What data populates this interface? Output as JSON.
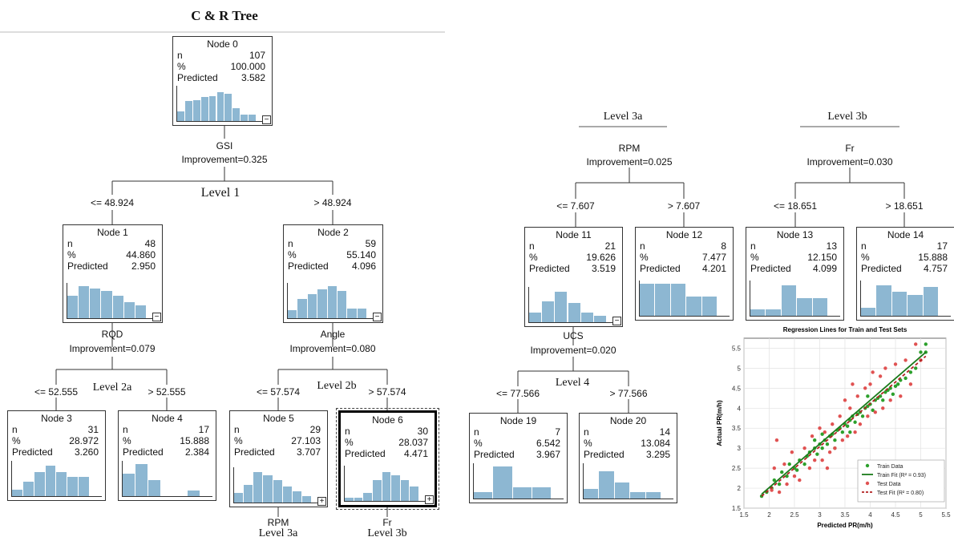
{
  "title": "C & R Tree",
  "nodes": {
    "n0": {
      "name": "Node 0",
      "n": "107",
      "pct": "100.000",
      "pred": "3.582",
      "hist": [
        0.3,
        0.62,
        0.66,
        0.75,
        0.78,
        0.9,
        0.85,
        0.4,
        0.2,
        0.2
      ]
    },
    "n1": {
      "name": "Node 1",
      "n": "48",
      "pct": "44.860",
      "pred": "2.950",
      "hist": [
        0.7,
        1.0,
        0.92,
        0.85,
        0.7,
        0.5,
        0.4
      ]
    },
    "n2": {
      "name": "Node 2",
      "n": "59",
      "pct": "55.140",
      "pred": "4.096",
      "hist": [
        0.25,
        0.6,
        0.75,
        0.9,
        1.0,
        0.85,
        0.3,
        0.3
      ]
    },
    "n3": {
      "name": "Node 3",
      "n": "31",
      "pct": "28.972",
      "pred": "3.260",
      "hist": [
        0.2,
        0.45,
        0.75,
        0.95,
        0.75,
        0.6,
        0.6
      ]
    },
    "n4": {
      "name": "Node 4",
      "n": "17",
      "pct": "15.888",
      "pred": "2.384",
      "hist": [
        0.7,
        1.0,
        0.5,
        0,
        0,
        0.18
      ]
    },
    "n5": {
      "name": "Node 5",
      "n": "29",
      "pct": "27.103",
      "pred": "3.707",
      "hist": [
        0.3,
        0.55,
        0.95,
        0.85,
        0.7,
        0.5,
        0.35,
        0.2
      ]
    },
    "n6": {
      "name": "Node 6",
      "n": "30",
      "pct": "28.037",
      "pred": "4.471",
      "hist": [
        0.1,
        0.1,
        0.25,
        0.65,
        0.9,
        0.8,
        0.65,
        0.45
      ]
    },
    "n11": {
      "name": "Node 11",
      "n": "21",
      "pct": "19.626",
      "pred": "3.519",
      "hist": [
        0.3,
        0.65,
        0.95,
        0.6,
        0.3,
        0.2
      ]
    },
    "n12": {
      "name": "Node 12",
      "n": "8",
      "pct": "7.477",
      "pred": "4.201",
      "hist": [
        1.0,
        1.0,
        1.0,
        0.6,
        0.6
      ]
    },
    "n13": {
      "name": "Node 13",
      "n": "13",
      "pct": "12.150",
      "pred": "4.099",
      "hist": [
        0.2,
        0.2,
        0.95,
        0.55,
        0.55
      ]
    },
    "n14": {
      "name": "Node 14",
      "n": "17",
      "pct": "15.888",
      "pred": "4.757",
      "hist": [
        0.25,
        0.95,
        0.75,
        0.65,
        0.9
      ]
    },
    "n19": {
      "name": "Node 19",
      "n": "7",
      "pct": "6.542",
      "pred": "3.967",
      "hist": [
        0.2,
        1.0,
        0.35,
        0.35
      ]
    },
    "n20": {
      "name": "Node 20",
      "n": "14",
      "pct": "13.084",
      "pred": "3.295",
      "hist": [
        0.3,
        0.85,
        0.5,
        0.2,
        0.2
      ]
    }
  },
  "row_labels": {
    "n": "n",
    "pct": "%",
    "pred": "Predicted"
  },
  "splits": {
    "gsi": {
      "var": "GSI",
      "imp": "Improvement=0.325",
      "left": "<= 48.924",
      "right": "> 48.924"
    },
    "rqd": {
      "var": "RQD",
      "imp": "Improvement=0.079",
      "left": "<= 52.555",
      "right": "> 52.555"
    },
    "angle": {
      "var": "Angle",
      "imp": "Improvement=0.080",
      "left": "<= 57.574",
      "right": "> 57.574"
    },
    "rpm": {
      "var": "RPM",
      "imp": "Improvement=0.025",
      "left": "<= 7.607",
      "right": "> 7.607"
    },
    "fr": {
      "var": "Fr",
      "imp": "Improvement=0.030",
      "left": "<= 18.651",
      "right": "> 18.651"
    },
    "ucs": {
      "var": "UCS",
      "imp": "Improvement=0.020",
      "left": "<= 77.566",
      "right": "> 77.566"
    }
  },
  "levels": {
    "l1": "Level 1",
    "l2a": "Level 2a",
    "l2b": "Level 2b",
    "l3a": "Level 3a",
    "l3b": "Level 3b",
    "l4": "Level 4"
  },
  "bottom": {
    "rpm": "RPM",
    "fr": "Fr",
    "l3a": "Level 3a",
    "l3b": "Level 3b"
  },
  "toggles": {
    "minus": "−",
    "plus": "+"
  },
  "colors": {
    "bar": "#8db7d2",
    "train": "#2ca02c",
    "test": "#e05252",
    "trainLine": "#1a7a1a",
    "testLine": "#b22222"
  },
  "chart_data": {
    "type": "scatter",
    "title": "Regression Lines for Train and Test Sets",
    "xlabel": "Predicted PR(m/h)",
    "ylabel": "Actual PR(m/h)",
    "xlim": [
      1.5,
      5.5
    ],
    "ylim": [
      1.5,
      5.75
    ],
    "xticks": [
      1.5,
      2,
      2.5,
      3,
      3.5,
      4,
      4.5,
      5,
      5.5
    ],
    "yticks": [
      1.5,
      2,
      2.5,
      3,
      3.5,
      4,
      4.5,
      5,
      5.5
    ],
    "legend_position": "bottom-right",
    "series": [
      {
        "name": "Train Data",
        "kind": "points",
        "color": "#2ca02c",
        "points": [
          [
            1.85,
            1.8
          ],
          [
            1.95,
            1.9
          ],
          [
            2.05,
            2.0
          ],
          [
            2.1,
            2.2
          ],
          [
            2.2,
            2.1
          ],
          [
            2.25,
            2.4
          ],
          [
            2.35,
            2.3
          ],
          [
            2.4,
            2.6
          ],
          [
            2.5,
            2.5
          ],
          [
            2.55,
            2.45
          ],
          [
            2.6,
            2.7
          ],
          [
            2.7,
            2.6
          ],
          [
            2.75,
            2.8
          ],
          [
            2.8,
            2.9
          ],
          [
            2.9,
            3.0
          ],
          [
            2.95,
            2.85
          ],
          [
            3.0,
            3.1
          ],
          [
            3.05,
            3.0
          ],
          [
            3.1,
            3.2
          ],
          [
            3.15,
            3.1
          ],
          [
            3.2,
            3.3
          ],
          [
            3.25,
            3.35
          ],
          [
            3.3,
            3.2
          ],
          [
            3.35,
            3.45
          ],
          [
            3.4,
            3.5
          ],
          [
            3.45,
            3.4
          ],
          [
            3.5,
            3.6
          ],
          [
            3.55,
            3.55
          ],
          [
            3.6,
            3.7
          ],
          [
            3.65,
            3.8
          ],
          [
            3.7,
            3.65
          ],
          [
            3.75,
            3.85
          ],
          [
            3.8,
            3.9
          ],
          [
            3.85,
            3.8
          ],
          [
            3.9,
            4.0
          ],
          [
            3.95,
            4.05
          ],
          [
            4.0,
            4.1
          ],
          [
            4.05,
            3.95
          ],
          [
            4.1,
            4.2
          ],
          [
            4.15,
            4.25
          ],
          [
            4.2,
            4.3
          ],
          [
            4.25,
            4.2
          ],
          [
            4.3,
            4.4
          ],
          [
            4.35,
            4.45
          ],
          [
            4.4,
            4.5
          ],
          [
            4.5,
            4.55
          ],
          [
            4.55,
            4.6
          ],
          [
            4.6,
            4.7
          ],
          [
            4.7,
            4.75
          ],
          [
            4.8,
            4.9
          ],
          [
            4.9,
            5.0
          ],
          [
            5.0,
            5.4
          ],
          [
            5.1,
            5.4
          ],
          [
            5.1,
            5.6
          ],
          [
            3.3,
            3.0
          ],
          [
            3.6,
            3.4
          ],
          [
            2.9,
            3.2
          ],
          [
            3.95,
            4.3
          ],
          [
            4.45,
            4.35
          ],
          [
            3.05,
            3.35
          ]
        ]
      },
      {
        "name": "Train Fit (R² = 0.93)",
        "kind": "line",
        "color": "#1a7a1a",
        "points": [
          [
            1.85,
            1.85
          ],
          [
            5.1,
            5.4
          ]
        ]
      },
      {
        "name": "Test Data",
        "kind": "points",
        "color": "#e05252",
        "points": [
          [
            2.1,
            2.5
          ],
          [
            2.2,
            1.9
          ],
          [
            2.3,
            2.6
          ],
          [
            2.35,
            2.1
          ],
          [
            2.5,
            2.3
          ],
          [
            2.6,
            2.2
          ],
          [
            2.7,
            3.0
          ],
          [
            2.8,
            2.5
          ],
          [
            2.85,
            3.3
          ],
          [
            2.9,
            2.7
          ],
          [
            3.0,
            3.5
          ],
          [
            3.05,
            2.7
          ],
          [
            3.1,
            3.4
          ],
          [
            3.2,
            2.9
          ],
          [
            3.25,
            3.6
          ],
          [
            3.3,
            3.0
          ],
          [
            3.4,
            3.8
          ],
          [
            3.45,
            3.2
          ],
          [
            3.5,
            4.2
          ],
          [
            3.55,
            3.3
          ],
          [
            3.6,
            4.0
          ],
          [
            3.7,
            3.4
          ],
          [
            3.75,
            4.3
          ],
          [
            3.8,
            3.6
          ],
          [
            3.9,
            4.5
          ],
          [
            3.95,
            3.8
          ],
          [
            4.0,
            4.6
          ],
          [
            4.1,
            3.9
          ],
          [
            4.2,
            4.8
          ],
          [
            4.25,
            4.0
          ],
          [
            4.3,
            5.0
          ],
          [
            4.4,
            4.2
          ],
          [
            4.5,
            5.1
          ],
          [
            4.6,
            4.3
          ],
          [
            4.7,
            5.2
          ],
          [
            4.8,
            4.6
          ],
          [
            4.9,
            5.6
          ],
          [
            5.0,
            5.2
          ],
          [
            2.15,
            3.2
          ],
          [
            2.45,
            2.9
          ],
          [
            3.15,
            2.5
          ],
          [
            3.65,
            4.6
          ],
          [
            4.05,
            4.9
          ],
          [
            2.05,
            1.95
          ]
        ]
      },
      {
        "name": "Test Fit (R² = 0.80)",
        "kind": "dashed-line",
        "color": "#b22222",
        "points": [
          [
            1.85,
            1.8
          ],
          [
            5.1,
            5.3
          ]
        ]
      }
    ]
  }
}
